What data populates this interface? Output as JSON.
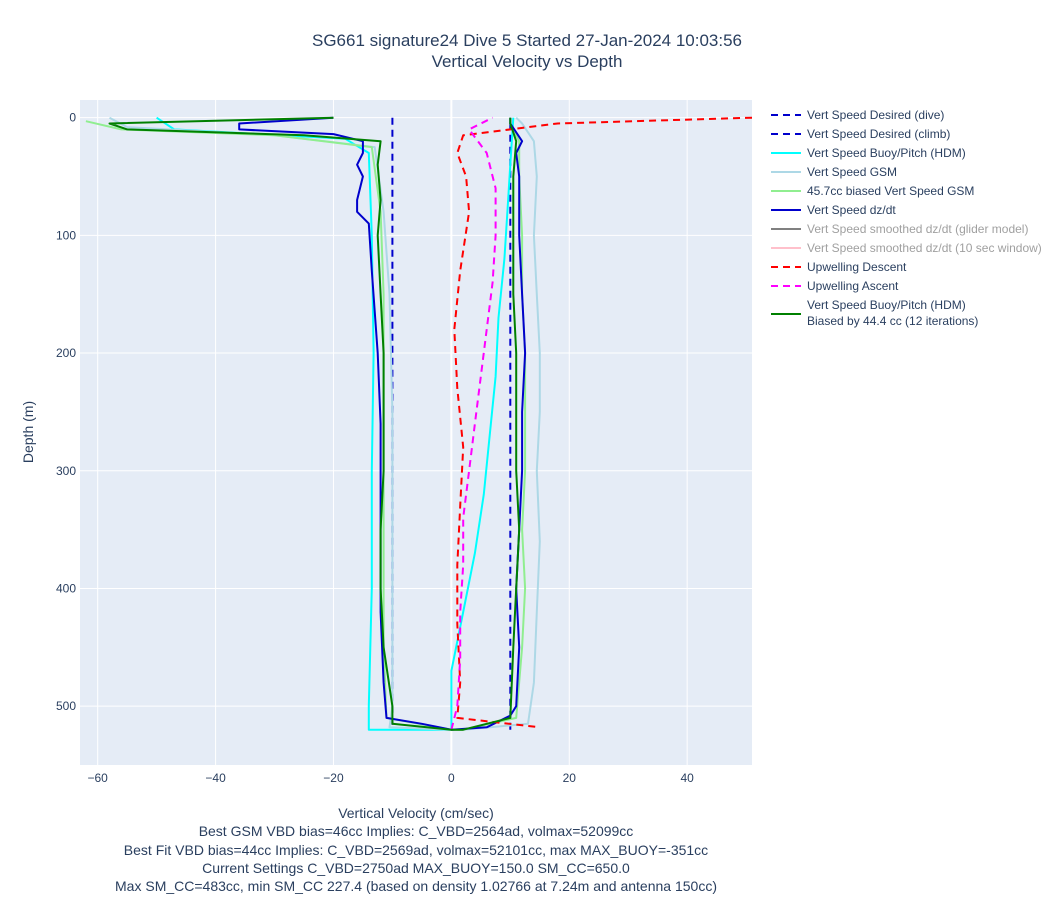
{
  "chart_data": {
    "type": "line",
    "title_line1": "SG661 signature24 Dive 5 Started 27-Jan-2024 10:03:56",
    "title_line2": "Vertical Velocity vs Depth",
    "xlabel": "Vertical Velocity (cm/sec)",
    "ylabel": "Depth (m)",
    "xlim": [
      -63,
      51
    ],
    "ylim": [
      550,
      -15
    ],
    "x_ticks": [
      -60,
      -40,
      -20,
      0,
      20,
      40
    ],
    "x_tick_labels": [
      "−60",
      "−40",
      "−20",
      "0",
      "20",
      "40"
    ],
    "y_ticks": [
      0,
      100,
      200,
      300,
      400,
      500
    ],
    "y_tick_labels": [
      "0",
      "100",
      "200",
      "300",
      "400",
      "500"
    ],
    "grid": true,
    "legend_position": "right",
    "notes": [
      "Best GSM VBD bias=46cc Implies: C_VBD=2564ad, volmax=52099cc",
      "Best Fit VBD bias=44cc Implies: C_VBD=2569ad, volmax=52101cc, max MAX_BUOY=-351cc",
      "Current Settings C_VBD=2750ad MAX_BUOY=150.0 SM_CC=650.0",
      "Max SM_CC=483cc, min SM_CC 227.4 (based on density 1.02766 at 7.24m and antenna 150cc)"
    ],
    "series": [
      {
        "name": "Vert Speed Desired (dive)",
        "color": "#0000cc",
        "dash": true,
        "legend_only": false,
        "points": [
          [
            -10,
            0
          ],
          [
            -10,
            520
          ]
        ]
      },
      {
        "name": "Vert Speed Desired (climb)",
        "color": "#0000cc",
        "dash": true,
        "legend_only": false,
        "points": [
          [
            10,
            520
          ],
          [
            10,
            0
          ]
        ]
      },
      {
        "name": "Vert Speed Buoy/Pitch (HDM)",
        "color": "#00ffff",
        "dash": false,
        "legend_only": false,
        "points": [
          [
            -50,
            0
          ],
          [
            -47,
            10
          ],
          [
            -18,
            18
          ],
          [
            -14,
            30
          ],
          [
            -13.5,
            100
          ],
          [
            -13.2,
            200
          ],
          [
            -13.5,
            300
          ],
          [
            -13.5,
            400
          ],
          [
            -14,
            500
          ],
          [
            -14,
            520
          ],
          [
            0,
            520
          ],
          [
            0,
            470
          ],
          [
            2,
            420
          ],
          [
            4,
            370
          ],
          [
            5.5,
            320
          ],
          [
            6.5,
            270
          ],
          [
            7.5,
            220
          ],
          [
            8,
            170
          ],
          [
            9,
            120
          ],
          [
            9.5,
            80
          ],
          [
            10,
            40
          ],
          [
            10.5,
            0
          ]
        ]
      },
      {
        "name": "Vert Speed GSM",
        "color": "#add8e6",
        "dash": false,
        "legend_only": false,
        "points": [
          [
            -58,
            0
          ],
          [
            -55,
            8
          ],
          [
            -30,
            15
          ],
          [
            -13,
            25
          ],
          [
            -11.5,
            80
          ],
          [
            -10.5,
            150
          ],
          [
            -10,
            250
          ],
          [
            -10,
            350
          ],
          [
            -10,
            450
          ],
          [
            -10,
            500
          ],
          [
            -10.5,
            518
          ],
          [
            0,
            520
          ],
          [
            2,
            520
          ],
          [
            13,
            515
          ],
          [
            14,
            480
          ],
          [
            14.5,
            420
          ],
          [
            15,
            360
          ],
          [
            14.5,
            300
          ],
          [
            15,
            250
          ],
          [
            15,
            200
          ],
          [
            14.5,
            150
          ],
          [
            14,
            100
          ],
          [
            14.5,
            50
          ],
          [
            14,
            20
          ],
          [
            12,
            5
          ],
          [
            11,
            0
          ]
        ]
      },
      {
        "name": "45.7cc biased Vert Speed GSM",
        "color": "#90ee90",
        "dash": false,
        "legend_only": false,
        "points": [
          [
            -62,
            3
          ],
          [
            -56,
            10
          ],
          [
            -30,
            15
          ],
          [
            -13.5,
            25
          ],
          [
            -12,
            80
          ],
          [
            -11.5,
            150
          ],
          [
            -11.5,
            250
          ],
          [
            -11.5,
            350
          ],
          [
            -11.5,
            450
          ],
          [
            -11,
            510
          ],
          [
            0,
            520
          ],
          [
            2,
            520
          ],
          [
            11,
            510
          ],
          [
            12,
            450
          ],
          [
            12.5,
            400
          ],
          [
            12,
            350
          ],
          [
            12.5,
            300
          ],
          [
            12.5,
            250
          ],
          [
            12.5,
            200
          ],
          [
            12,
            150
          ],
          [
            12,
            100
          ],
          [
            11.5,
            50
          ],
          [
            11.5,
            20
          ],
          [
            10,
            5
          ],
          [
            10,
            0
          ]
        ]
      },
      {
        "name": "Vert Speed dz/dt",
        "color": "#0000cc",
        "dash": false,
        "legend_only": false,
        "points": [
          [
            -20,
            0
          ],
          [
            -36,
            5
          ],
          [
            -36,
            10
          ],
          [
            -20,
            14
          ],
          [
            -15,
            20
          ],
          [
            -15,
            30
          ],
          [
            -16,
            40
          ],
          [
            -15,
            50
          ],
          [
            -16,
            70
          ],
          [
            -16,
            80
          ],
          [
            -14,
            90
          ],
          [
            -13.5,
            130
          ],
          [
            -12.5,
            200
          ],
          [
            -12,
            260
          ],
          [
            -12,
            300
          ],
          [
            -12,
            360
          ],
          [
            -12,
            420
          ],
          [
            -11.5,
            480
          ],
          [
            -11,
            510
          ],
          [
            -5,
            515
          ],
          [
            -2,
            518
          ],
          [
            0,
            520
          ],
          [
            6,
            518
          ],
          [
            10,
            508
          ],
          [
            11,
            500
          ],
          [
            11.5,
            450
          ],
          [
            11,
            400
          ],
          [
            11.5,
            350
          ],
          [
            12,
            300
          ],
          [
            12,
            250
          ],
          [
            12.5,
            200
          ],
          [
            12,
            150
          ],
          [
            11.5,
            100
          ],
          [
            11.5,
            50
          ],
          [
            11,
            30
          ],
          [
            12,
            20
          ],
          [
            10,
            5
          ],
          [
            10,
            0
          ]
        ]
      },
      {
        "name": "Vert Speed smoothed dz/dt (glider model)",
        "color": "#808080",
        "dash": false,
        "legend_only": true,
        "points": []
      },
      {
        "name": "Vert Speed smoothed dz/dt (10 sec window)",
        "color": "#ffc0cb",
        "dash": false,
        "legend_only": true,
        "points": []
      },
      {
        "name": "Upwelling Descent",
        "color": "#ff0000",
        "dash": true,
        "legend_only": false,
        "points": [
          [
            51,
            0
          ],
          [
            18,
            5
          ],
          [
            2,
            15
          ],
          [
            1,
            30
          ],
          [
            2.5,
            50
          ],
          [
            3,
            80
          ],
          [
            1.5,
            130
          ],
          [
            0.5,
            180
          ],
          [
            1,
            230
          ],
          [
            2,
            280
          ],
          [
            1.5,
            330
          ],
          [
            1,
            380
          ],
          [
            1,
            430
          ],
          [
            1.5,
            480
          ],
          [
            1,
            510
          ],
          [
            15,
            518
          ]
        ]
      },
      {
        "name": "Upwelling Ascent",
        "color": "#ff00ff",
        "dash": true,
        "legend_only": false,
        "points": [
          [
            0,
            520
          ],
          [
            1,
            500
          ],
          [
            1.5,
            460
          ],
          [
            1.5,
            420
          ],
          [
            2,
            380
          ],
          [
            2,
            340
          ],
          [
            3,
            300
          ],
          [
            4,
            260
          ],
          [
            5,
            220
          ],
          [
            6,
            180
          ],
          [
            7,
            140
          ],
          [
            7.5,
            100
          ],
          [
            7.5,
            60
          ],
          [
            6,
            30
          ],
          [
            3,
            10
          ],
          [
            7,
            0
          ]
        ]
      },
      {
        "name": "Vert Speed Buoy/Pitch (HDM) Biased by 44.4 cc (12 iterations)",
        "color": "#008000",
        "dash": false,
        "legend_only": false,
        "legend_lines": [
          "Vert Speed Buoy/Pitch (HDM)",
          "Biased by 44.4 cc (12 iterations)"
        ],
        "points": [
          [
            -20,
            0
          ],
          [
            -58,
            5
          ],
          [
            -55,
            10
          ],
          [
            -25,
            15
          ],
          [
            -12,
            20
          ],
          [
            -12.5,
            40
          ],
          [
            -12,
            70
          ],
          [
            -12.5,
            100
          ],
          [
            -12,
            150
          ],
          [
            -11.5,
            200
          ],
          [
            -11.5,
            250
          ],
          [
            -11.5,
            300
          ],
          [
            -12,
            350
          ],
          [
            -12,
            400
          ],
          [
            -11.5,
            450
          ],
          [
            -10,
            500
          ],
          [
            -10,
            515
          ],
          [
            0,
            520
          ],
          [
            2,
            520
          ],
          [
            10,
            510
          ],
          [
            10.5,
            450
          ],
          [
            11,
            400
          ],
          [
            11.5,
            350
          ],
          [
            11,
            300
          ],
          [
            11,
            250
          ],
          [
            11,
            200
          ],
          [
            10.5,
            150
          ],
          [
            10.5,
            100
          ],
          [
            10.5,
            50
          ],
          [
            11,
            20
          ],
          [
            10,
            5
          ],
          [
            10,
            0
          ]
        ]
      }
    ]
  }
}
